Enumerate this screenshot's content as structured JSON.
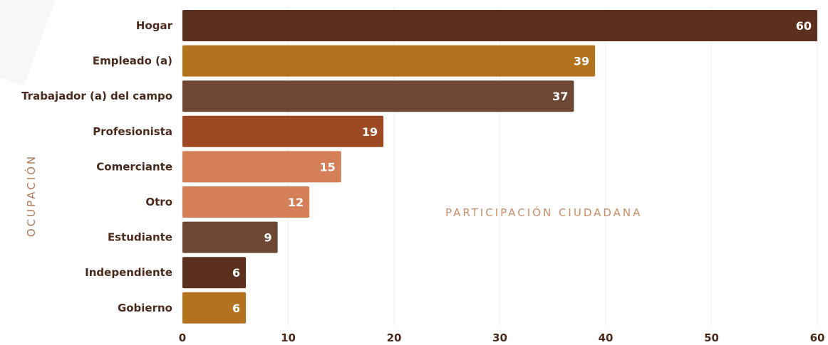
{
  "chart_data": {
    "type": "bar",
    "orientation": "horizontal",
    "categories": [
      "Hogar",
      "Empleado (a)",
      "Trabajador (a) del campo",
      "Profesionista",
      "Comerciante",
      "Otro",
      "Estudiante",
      "Independiente",
      "Gobierno"
    ],
    "values": [
      60,
      39,
      37,
      19,
      15,
      12,
      9,
      6,
      6
    ],
    "colors": [
      "#5c301e",
      "#b3721e",
      "#6e4634",
      "#9d4a24",
      "#d47f58",
      "#d47f58",
      "#6e4634",
      "#5c301e",
      "#b3721e"
    ],
    "ylabel": "OCUPACIÓN",
    "annotation": "PARTICIPACIÓN CIUDADANA",
    "xlim": [
      0,
      60
    ],
    "xticks": [
      0,
      10,
      20,
      30,
      40,
      50,
      60
    ],
    "grid": true,
    "data_labels": true
  }
}
